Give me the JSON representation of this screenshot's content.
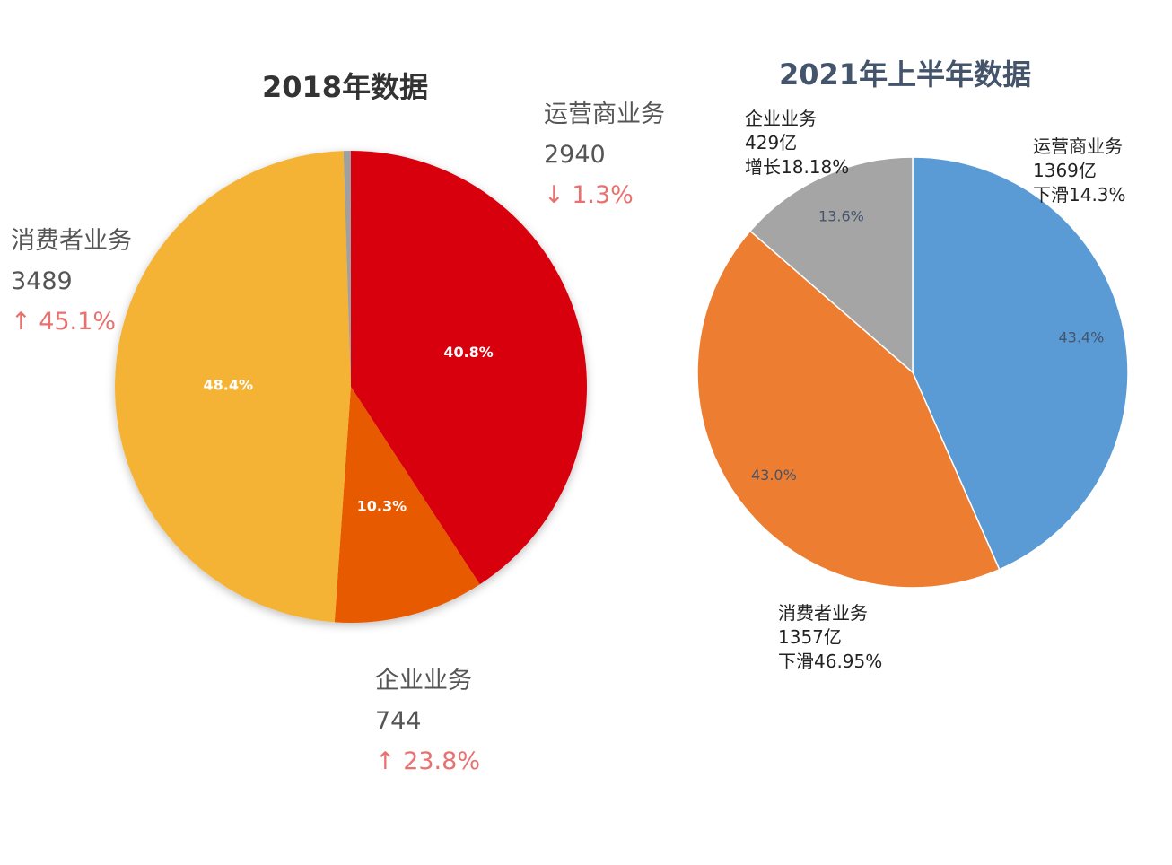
{
  "chart_data": [
    {
      "type": "pie",
      "title": "2018年数据",
      "start": "top",
      "direction": "clockwise",
      "slices": [
        {
          "name": "运营商业务",
          "percent": 40.8,
          "value": "2940",
          "change": "↓ 1.3%",
          "color": "#d9000f",
          "label_color": "#ffffff"
        },
        {
          "name": "企业业务",
          "percent": 10.3,
          "value": "744",
          "change": "↑ 23.8%",
          "color": "#e85a00",
          "label_color": "#ffffff"
        },
        {
          "name": "消费者业务",
          "percent": 48.4,
          "value": "3489",
          "change": "↑ 45.1%",
          "color": "#f5b335",
          "label_color": "#ffffff"
        },
        {
          "name": "",
          "percent": 0.5,
          "value": "",
          "change": "",
          "color": "#a0a0a0",
          "label_color": ""
        }
      ]
    },
    {
      "type": "pie",
      "title": "2021年上半年数据",
      "start": "top",
      "direction": "clockwise",
      "slices": [
        {
          "name": "运营商业务",
          "percent": 43.4,
          "value": "1369亿",
          "change": "下滑14.3%",
          "color": "#5b9bd5",
          "label_color": "#44546a"
        },
        {
          "name": "消费者业务",
          "percent": 43.0,
          "value": "1357亿",
          "change": "下滑46.95%",
          "color": "#ed7d31",
          "label_color": "#44546a"
        },
        {
          "name": "企业业务",
          "percent": 13.6,
          "value": "429亿",
          "change": "增长18.18%",
          "color": "#a5a5a5",
          "label_color": "#44546a"
        }
      ]
    }
  ]
}
